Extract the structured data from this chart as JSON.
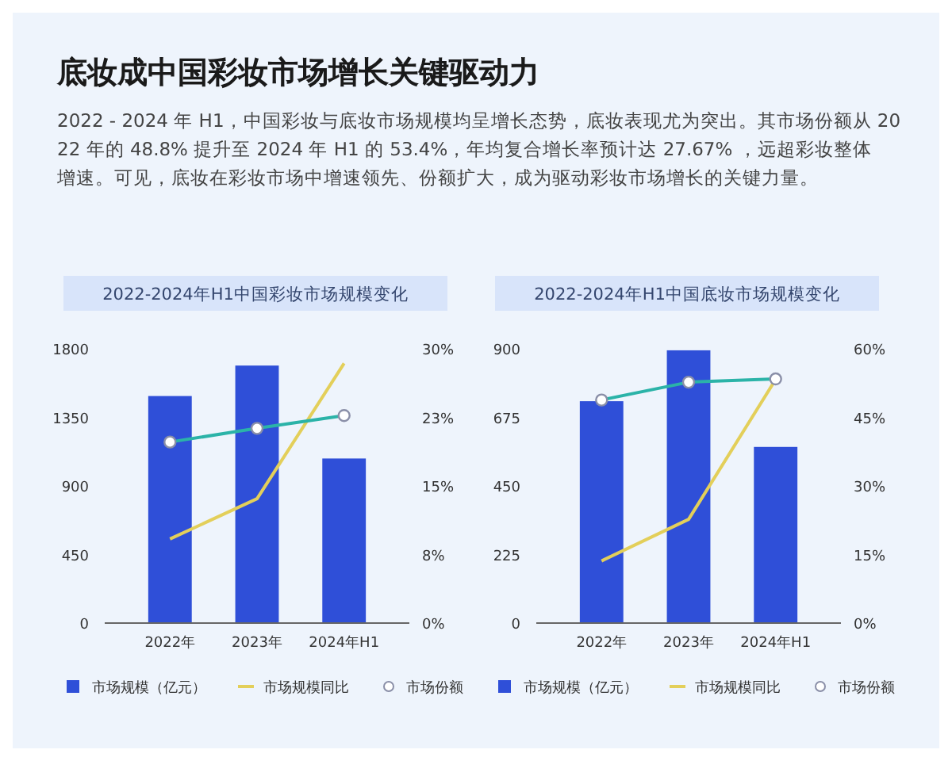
{
  "chart_data": [
    {
      "type": "other",
      "title": "底妆成中国彩妆市场增长关键驱动力",
      "subtitle": "2022 - 2024 年 H1，中国彩妆与底妆市场规模均呈增长态势，底妆表现尤为突出。其市场份额从 2022 年的 48.8% 提升至 2024 年 H1 的 53.4%，年均复合增长率预计达 27.67% ，远超彩妆整体增速。可见，底妆在彩妆市场中增速领先、份额扩大，成为驱动彩妆市场增长的关键力量。"
    },
    {
      "type": "bar",
      "title": "2022-2024年H1中国彩妆市场规模变化",
      "categories": [
        "2022年",
        "2023年",
        "2024年H1"
      ],
      "ylim": [
        0,
        1800
      ],
      "yticks": [
        0,
        450,
        900,
        1350,
        1800
      ],
      "y2lim": [
        0,
        30
      ],
      "y2ticks": [
        {
          "value": 0,
          "label": "0%"
        },
        {
          "value": 7.5,
          "label": "8%"
        },
        {
          "value": 15,
          "label": "15%"
        },
        {
          "value": 22.5,
          "label": "23%"
        },
        {
          "value": 30,
          "label": "30%"
        }
      ],
      "legend": "bottom",
      "series": [
        {
          "name": "市场规模（亿元）",
          "type": "bar",
          "color": "#2f4fd8",
          "values": [
            1490,
            1690,
            1080
          ]
        },
        {
          "name": "市场规模同比",
          "type": "line",
          "axis": "y2",
          "color": "#e3cf5a",
          "marker": "none",
          "values": [
            9.2,
            13.6,
            28.4
          ]
        },
        {
          "name": "市场份额",
          "type": "line",
          "axis": "y2",
          "color": "#2bb3a8",
          "marker": "circle",
          "values": [
            19.8,
            21.3,
            22.7
          ]
        }
      ]
    },
    {
      "type": "bar",
      "title": "2022-2024年H1中国底妆市场规模变化",
      "categories": [
        "2022年",
        "2023年",
        "2024年H1"
      ],
      "ylim": [
        0,
        900
      ],
      "yticks": [
        0,
        225,
        450,
        675,
        900
      ],
      "y2lim": [
        0,
        60
      ],
      "y2ticks": [
        {
          "value": 0,
          "label": "0%"
        },
        {
          "value": 15,
          "label": "15%"
        },
        {
          "value": 30,
          "label": "30%"
        },
        {
          "value": 45,
          "label": "45%"
        },
        {
          "value": 60,
          "label": "60%"
        }
      ],
      "legend": "bottom",
      "series": [
        {
          "name": "市场规模（亿元）",
          "type": "bar",
          "color": "#2f4fd8",
          "values": [
            728,
            895,
            578
          ]
        },
        {
          "name": "市场规模同比",
          "type": "line",
          "axis": "y2",
          "color": "#e3cf5a",
          "marker": "none",
          "values": [
            13.6,
            22.7,
            53.3
          ]
        },
        {
          "name": "市场份额",
          "type": "line",
          "axis": "y2",
          "color": "#2bb3a8",
          "marker": "circle",
          "values": [
            48.8,
            52.7,
            53.4
          ]
        }
      ]
    }
  ]
}
